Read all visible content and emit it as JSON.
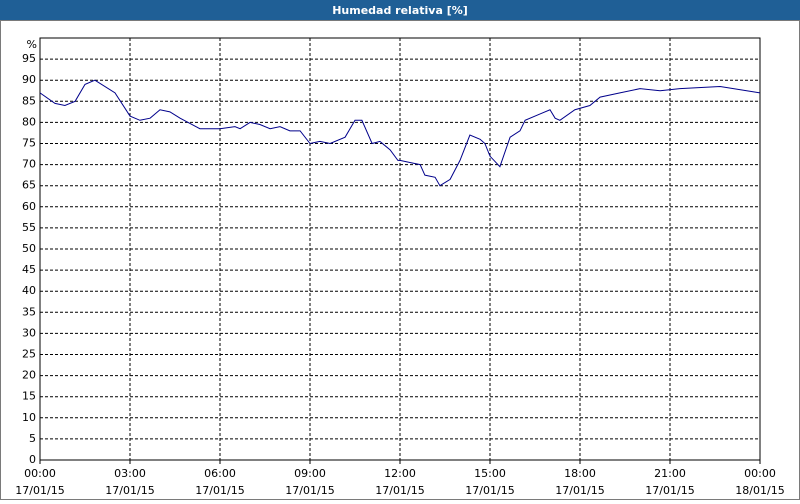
{
  "chart_data": {
    "type": "line",
    "title": "Humedad relativa [%]",
    "y_label": "%",
    "x": [
      0,
      0.5,
      0.83,
      1.17,
      1.5,
      1.83,
      2.5,
      3,
      3.33,
      3.67,
      4,
      4.33,
      4.67,
      5.33,
      6,
      6.5,
      6.67,
      7,
      7.33,
      7.67,
      8,
      8.33,
      8.67,
      9,
      9.33,
      9.67,
      10.17,
      10.5,
      10.73,
      11.07,
      11.33,
      11.67,
      11.93,
      12,
      12.33,
      12.67,
      12.83,
      13.17,
      13.33,
      13.67,
      14,
      14.33,
      14.67,
      14.83,
      15,
      15.33,
      15.67,
      16,
      16.17,
      16.67,
      17,
      17.17,
      17.33,
      17.83,
      18.33,
      18.67,
      19.33,
      20,
      20.67,
      21.33,
      22.67,
      24
    ],
    "series": [
      {
        "name": "Humedad relativa",
        "color": "#00008b",
        "values": [
          87,
          84.5,
          84,
          85,
          89,
          90,
          87,
          81.5,
          80.5,
          81,
          83,
          82.5,
          81,
          78.5,
          78.5,
          79,
          78.5,
          80,
          79.5,
          78.5,
          79,
          78,
          78,
          75,
          75.5,
          75,
          76.5,
          80.5,
          80.5,
          75,
          75.5,
          73.5,
          71,
          71,
          70.5,
          70,
          67.5,
          67,
          65,
          66.5,
          71,
          77,
          76,
          75,
          72,
          69.5,
          76.5,
          78,
          80.5,
          82,
          83,
          81,
          80.5,
          83,
          84,
          86,
          87,
          88,
          87.5,
          88,
          88.5,
          87
        ]
      }
    ],
    "xlim": [
      0,
      24
    ],
    "xticks": [
      {
        "value": 0,
        "label": "00:00"
      },
      {
        "value": 3,
        "label": "03:00"
      },
      {
        "value": 6,
        "label": "06:00"
      },
      {
        "value": 9,
        "label": "09:00"
      },
      {
        "value": 12,
        "label": "12:00"
      },
      {
        "value": 15,
        "label": "15:00"
      },
      {
        "value": 18,
        "label": "18:00"
      },
      {
        "value": 21,
        "label": "21:00"
      },
      {
        "value": 24,
        "label": "00:00"
      }
    ],
    "xtick_dates": [
      "17/01/15",
      "17/01/15",
      "17/01/15",
      "17/01/15",
      "17/01/15",
      "17/01/15",
      "17/01/15",
      "17/01/15",
      "18/01/15"
    ],
    "ylim": [
      0,
      100
    ],
    "yticks": [
      0,
      5,
      10,
      15,
      20,
      25,
      30,
      35,
      40,
      45,
      50,
      55,
      60,
      65,
      70,
      75,
      80,
      85,
      90,
      95
    ],
    "grid": true
  }
}
